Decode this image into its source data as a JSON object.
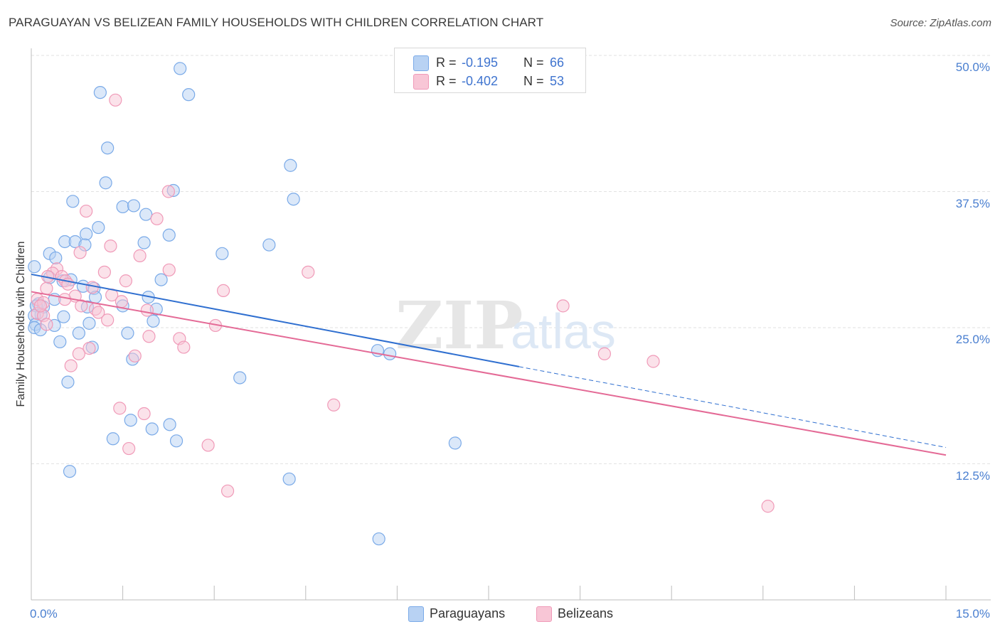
{
  "chart_data": {
    "type": "scatter",
    "title": "PARAGUAYAN VS BELIZEAN FAMILY HOUSEHOLDS WITH CHILDREN CORRELATION CHART",
    "source": "Source: ZipAtlas.com",
    "xlabel": "",
    "ylabel": "Family Households with Children",
    "xlim": [
      0,
      15
    ],
    "ylim": [
      0,
      50
    ],
    "x_tick_labels": [
      {
        "value": 0,
        "label": "0.0%"
      },
      {
        "value": 15,
        "label": "15.0%"
      }
    ],
    "y_tick_labels": [
      {
        "value": 12.5,
        "label": "12.5%"
      },
      {
        "value": 25,
        "label": "25.0%"
      },
      {
        "value": 37.5,
        "label": "37.5%"
      },
      {
        "value": 50,
        "label": "50.0%"
      }
    ],
    "grid": true,
    "watermark": {
      "part1": "ZIP",
      "part2": "atlas"
    },
    "legend": {
      "r_label": "R =",
      "n_label": "N =",
      "entries": [
        {
          "name": "Paraguayans",
          "r": "-0.195",
          "n": "66",
          "color": "#7aaae8"
        },
        {
          "name": "Belizeans",
          "r": "-0.402",
          "n": "53",
          "color": "#f09ab8"
        }
      ]
    },
    "series": [
      {
        "name": "Paraguayans",
        "color": "#7aaae8",
        "fill": "#b8d2f3",
        "line_color": "#2f6fd0",
        "trend": {
          "x_start": 0,
          "y_start": 29.9,
          "x_solid_end": 8.0,
          "x_end": 15,
          "y_end": 14.0
        },
        "points": [
          [
            2.44,
            48.8
          ],
          [
            1.13,
            46.6
          ],
          [
            2.58,
            46.4
          ],
          [
            1.25,
            41.5
          ],
          [
            4.25,
            39.9
          ],
          [
            1.22,
            38.3
          ],
          [
            2.33,
            37.6
          ],
          [
            4.3,
            36.8
          ],
          [
            0.68,
            36.6
          ],
          [
            1.5,
            36.1
          ],
          [
            1.68,
            36.2
          ],
          [
            1.88,
            35.4
          ],
          [
            1.1,
            34.2
          ],
          [
            0.9,
            33.6
          ],
          [
            2.26,
            33.5
          ],
          [
            0.55,
            32.9
          ],
          [
            0.72,
            32.9
          ],
          [
            0.88,
            32.6
          ],
          [
            1.85,
            32.8
          ],
          [
            3.9,
            32.6
          ],
          [
            3.13,
            31.8
          ],
          [
            0.3,
            31.8
          ],
          [
            0.4,
            31.4
          ],
          [
            0.05,
            30.6
          ],
          [
            0.3,
            29.6
          ],
          [
            0.65,
            29.4
          ],
          [
            0.52,
            29.3
          ],
          [
            2.13,
            29.4
          ],
          [
            0.85,
            28.8
          ],
          [
            1.03,
            28.6
          ],
          [
            1.05,
            27.8
          ],
          [
            1.92,
            27.8
          ],
          [
            0.38,
            27.6
          ],
          [
            0.12,
            27.2
          ],
          [
            0.2,
            26.9
          ],
          [
            0.08,
            27.0
          ],
          [
            0.92,
            26.9
          ],
          [
            1.5,
            27.0
          ],
          [
            2.05,
            26.7
          ],
          [
            0.16,
            26.2
          ],
          [
            0.05,
            26.1
          ],
          [
            0.53,
            26.0
          ],
          [
            0.07,
            25.3
          ],
          [
            0.38,
            25.2
          ],
          [
            0.95,
            25.4
          ],
          [
            2.0,
            25.6
          ],
          [
            0.05,
            25.0
          ],
          [
            0.78,
            24.5
          ],
          [
            1.58,
            24.5
          ],
          [
            0.47,
            23.7
          ],
          [
            1.0,
            23.2
          ],
          [
            5.68,
            22.9
          ],
          [
            5.88,
            22.6
          ],
          [
            1.66,
            22.1
          ],
          [
            3.42,
            20.4
          ],
          [
            0.6,
            20.0
          ],
          [
            1.63,
            16.5
          ],
          [
            2.27,
            16.1
          ],
          [
            1.98,
            15.7
          ],
          [
            1.34,
            14.8
          ],
          [
            2.38,
            14.6
          ],
          [
            6.95,
            14.4
          ],
          [
            0.63,
            11.8
          ],
          [
            4.23,
            11.1
          ],
          [
            5.7,
            5.6
          ],
          [
            0.15,
            24.8
          ]
        ]
      },
      {
        "name": "Belizeans",
        "color": "#f09ab8",
        "fill": "#f8c6d6",
        "line_color": "#e46a96",
        "trend": {
          "x_start": 0,
          "y_start": 28.3,
          "x_solid_end": 15,
          "x_end": 15,
          "y_end": 13.3
        },
        "points": [
          [
            1.38,
            45.9
          ],
          [
            2.25,
            37.5
          ],
          [
            0.9,
            35.7
          ],
          [
            2.06,
            35.0
          ],
          [
            1.3,
            32.5
          ],
          [
            0.8,
            31.9
          ],
          [
            1.78,
            31.6
          ],
          [
            0.42,
            30.4
          ],
          [
            1.2,
            30.1
          ],
          [
            2.26,
            30.3
          ],
          [
            4.54,
            30.1
          ],
          [
            0.35,
            30.0
          ],
          [
            0.27,
            29.7
          ],
          [
            0.5,
            29.7
          ],
          [
            0.56,
            29.3
          ],
          [
            1.55,
            29.3
          ],
          [
            0.6,
            29.0
          ],
          [
            0.25,
            28.6
          ],
          [
            3.15,
            28.4
          ],
          [
            1.0,
            28.7
          ],
          [
            1.32,
            28.0
          ],
          [
            0.72,
            27.9
          ],
          [
            0.55,
            27.6
          ],
          [
            0.1,
            27.6
          ],
          [
            0.2,
            27.3
          ],
          [
            1.48,
            27.4
          ],
          [
            0.82,
            27.0
          ],
          [
            8.72,
            27.0
          ],
          [
            1.05,
            26.7
          ],
          [
            1.1,
            26.4
          ],
          [
            1.9,
            26.6
          ],
          [
            0.1,
            26.3
          ],
          [
            0.2,
            26.1
          ],
          [
            1.25,
            25.7
          ],
          [
            0.25,
            25.3
          ],
          [
            3.02,
            25.2
          ],
          [
            1.93,
            24.2
          ],
          [
            2.43,
            24.0
          ],
          [
            2.5,
            23.2
          ],
          [
            0.95,
            23.1
          ],
          [
            0.78,
            22.6
          ],
          [
            1.7,
            22.4
          ],
          [
            9.4,
            22.6
          ],
          [
            10.2,
            21.9
          ],
          [
            0.65,
            21.5
          ],
          [
            4.96,
            17.9
          ],
          [
            1.45,
            17.6
          ],
          [
            1.85,
            17.1
          ],
          [
            2.9,
            14.2
          ],
          [
            1.6,
            13.9
          ],
          [
            3.22,
            10.0
          ],
          [
            12.08,
            8.6
          ],
          [
            0.15,
            27.0
          ]
        ]
      }
    ]
  }
}
